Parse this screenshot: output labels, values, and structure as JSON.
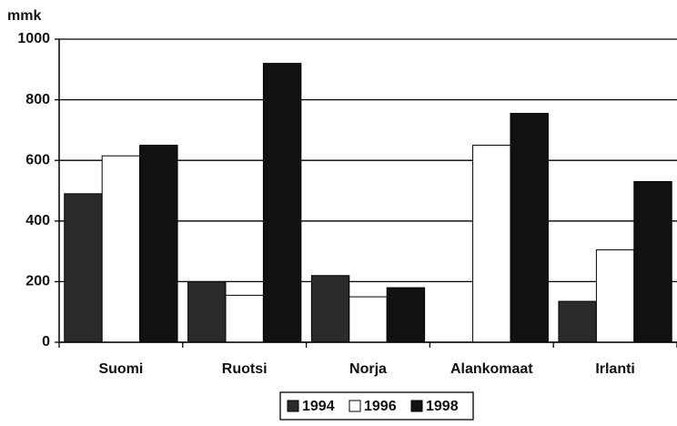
{
  "chart_data": {
    "type": "bar",
    "y_label": "mmk",
    "categories": [
      "Suomi",
      "Ruotsi",
      "Norja",
      "Alankomaat",
      "Irlanti"
    ],
    "series": [
      {
        "name": "1994",
        "color": "#2b2b2b",
        "values": [
          490,
          200,
          220,
          null,
          135
        ]
      },
      {
        "name": "1996",
        "color": "#ffffff",
        "values": [
          615,
          155,
          150,
          650,
          305
        ]
      },
      {
        "name": "1998",
        "color": "#111111",
        "values": [
          650,
          920,
          180,
          755,
          530
        ]
      }
    ],
    "ylim": [
      0,
      1000
    ],
    "yticks": [
      0,
      200,
      400,
      600,
      800,
      1000
    ],
    "grid": true,
    "legend": "bottom"
  }
}
